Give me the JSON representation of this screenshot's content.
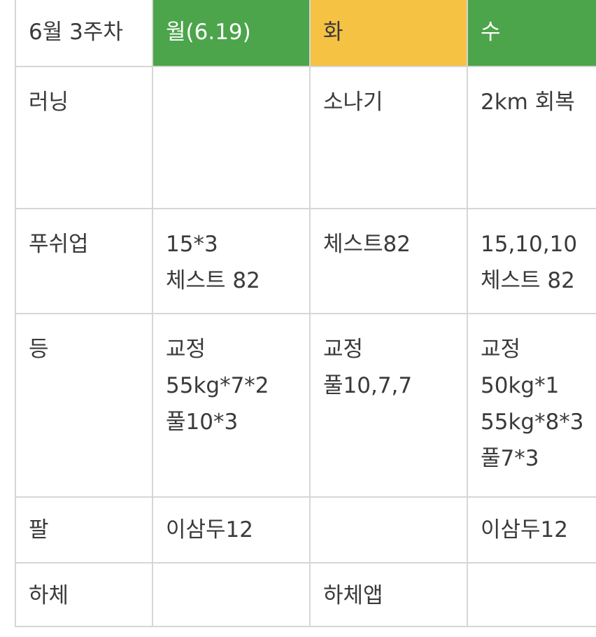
{
  "header": {
    "label": "6월 3주차",
    "mon": "월(6.19)",
    "tue": "화",
    "wed": "수"
  },
  "rows": {
    "running": {
      "label": "러닝",
      "mon": [],
      "tue": [
        "소나기"
      ],
      "wed": [
        "2km 회복"
      ]
    },
    "pushup": {
      "label": "푸쉬업",
      "mon": [
        "15*3",
        "체스트 82"
      ],
      "tue": [
        "체스트82"
      ],
      "wed": [
        "15,10,10",
        "체스트 82"
      ]
    },
    "back": {
      "label": "등",
      "mon": [
        "교정",
        "55kg*7*2",
        "풀10*3"
      ],
      "tue": [
        "교정",
        "풀10,7,7"
      ],
      "wed": [
        "교정",
        "50kg*1",
        "55kg*8*3",
        "풀7*3"
      ]
    },
    "arm": {
      "label": "팔",
      "mon": [
        "이삼두12"
      ],
      "tue": [],
      "wed": [
        "이삼두12"
      ]
    },
    "legs": {
      "label": "하체",
      "mon": [],
      "tue": [
        "하체앱"
      ],
      "wed": []
    }
  },
  "colors": {
    "monday_header": "#4ca44b",
    "tuesday_header": "#f6c244",
    "wednesday_header": "#4ca44b",
    "grid": "#d6d6d6"
  }
}
